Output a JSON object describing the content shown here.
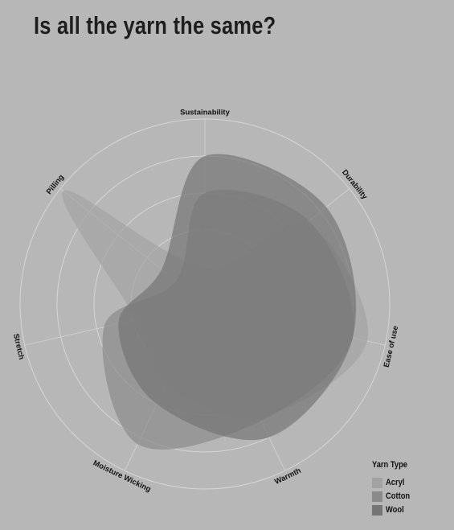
{
  "title": "Is all the yarn the same?",
  "chart_data": {
    "type": "radar",
    "title": "Is all the yarn the same?",
    "axes": [
      "Sustainability",
      "Durability",
      "Ease of use",
      "Warmth",
      "Moisture Wicking",
      "Stretch",
      "Pilling"
    ],
    "scale": [
      0,
      5
    ],
    "rings": 5,
    "legend_title": "Yarn Type",
    "legend_position": "bottom-right",
    "series": [
      {
        "name": "Acryl",
        "color": "#a2a2a2",
        "values": [
          1.0,
          3.5,
          4.5,
          3.4,
          2.4,
          1.9,
          4.9
        ]
      },
      {
        "name": "Cotton",
        "color": "#8a8a8a",
        "values": [
          3.0,
          3.6,
          4.1,
          3.5,
          4.2,
          2.8,
          1.0
        ]
      },
      {
        "name": "Wool",
        "color": "#757575",
        "values": [
          4.0,
          4.2,
          4.1,
          4.0,
          3.0,
          2.4,
          1.5
        ]
      }
    ]
  }
}
